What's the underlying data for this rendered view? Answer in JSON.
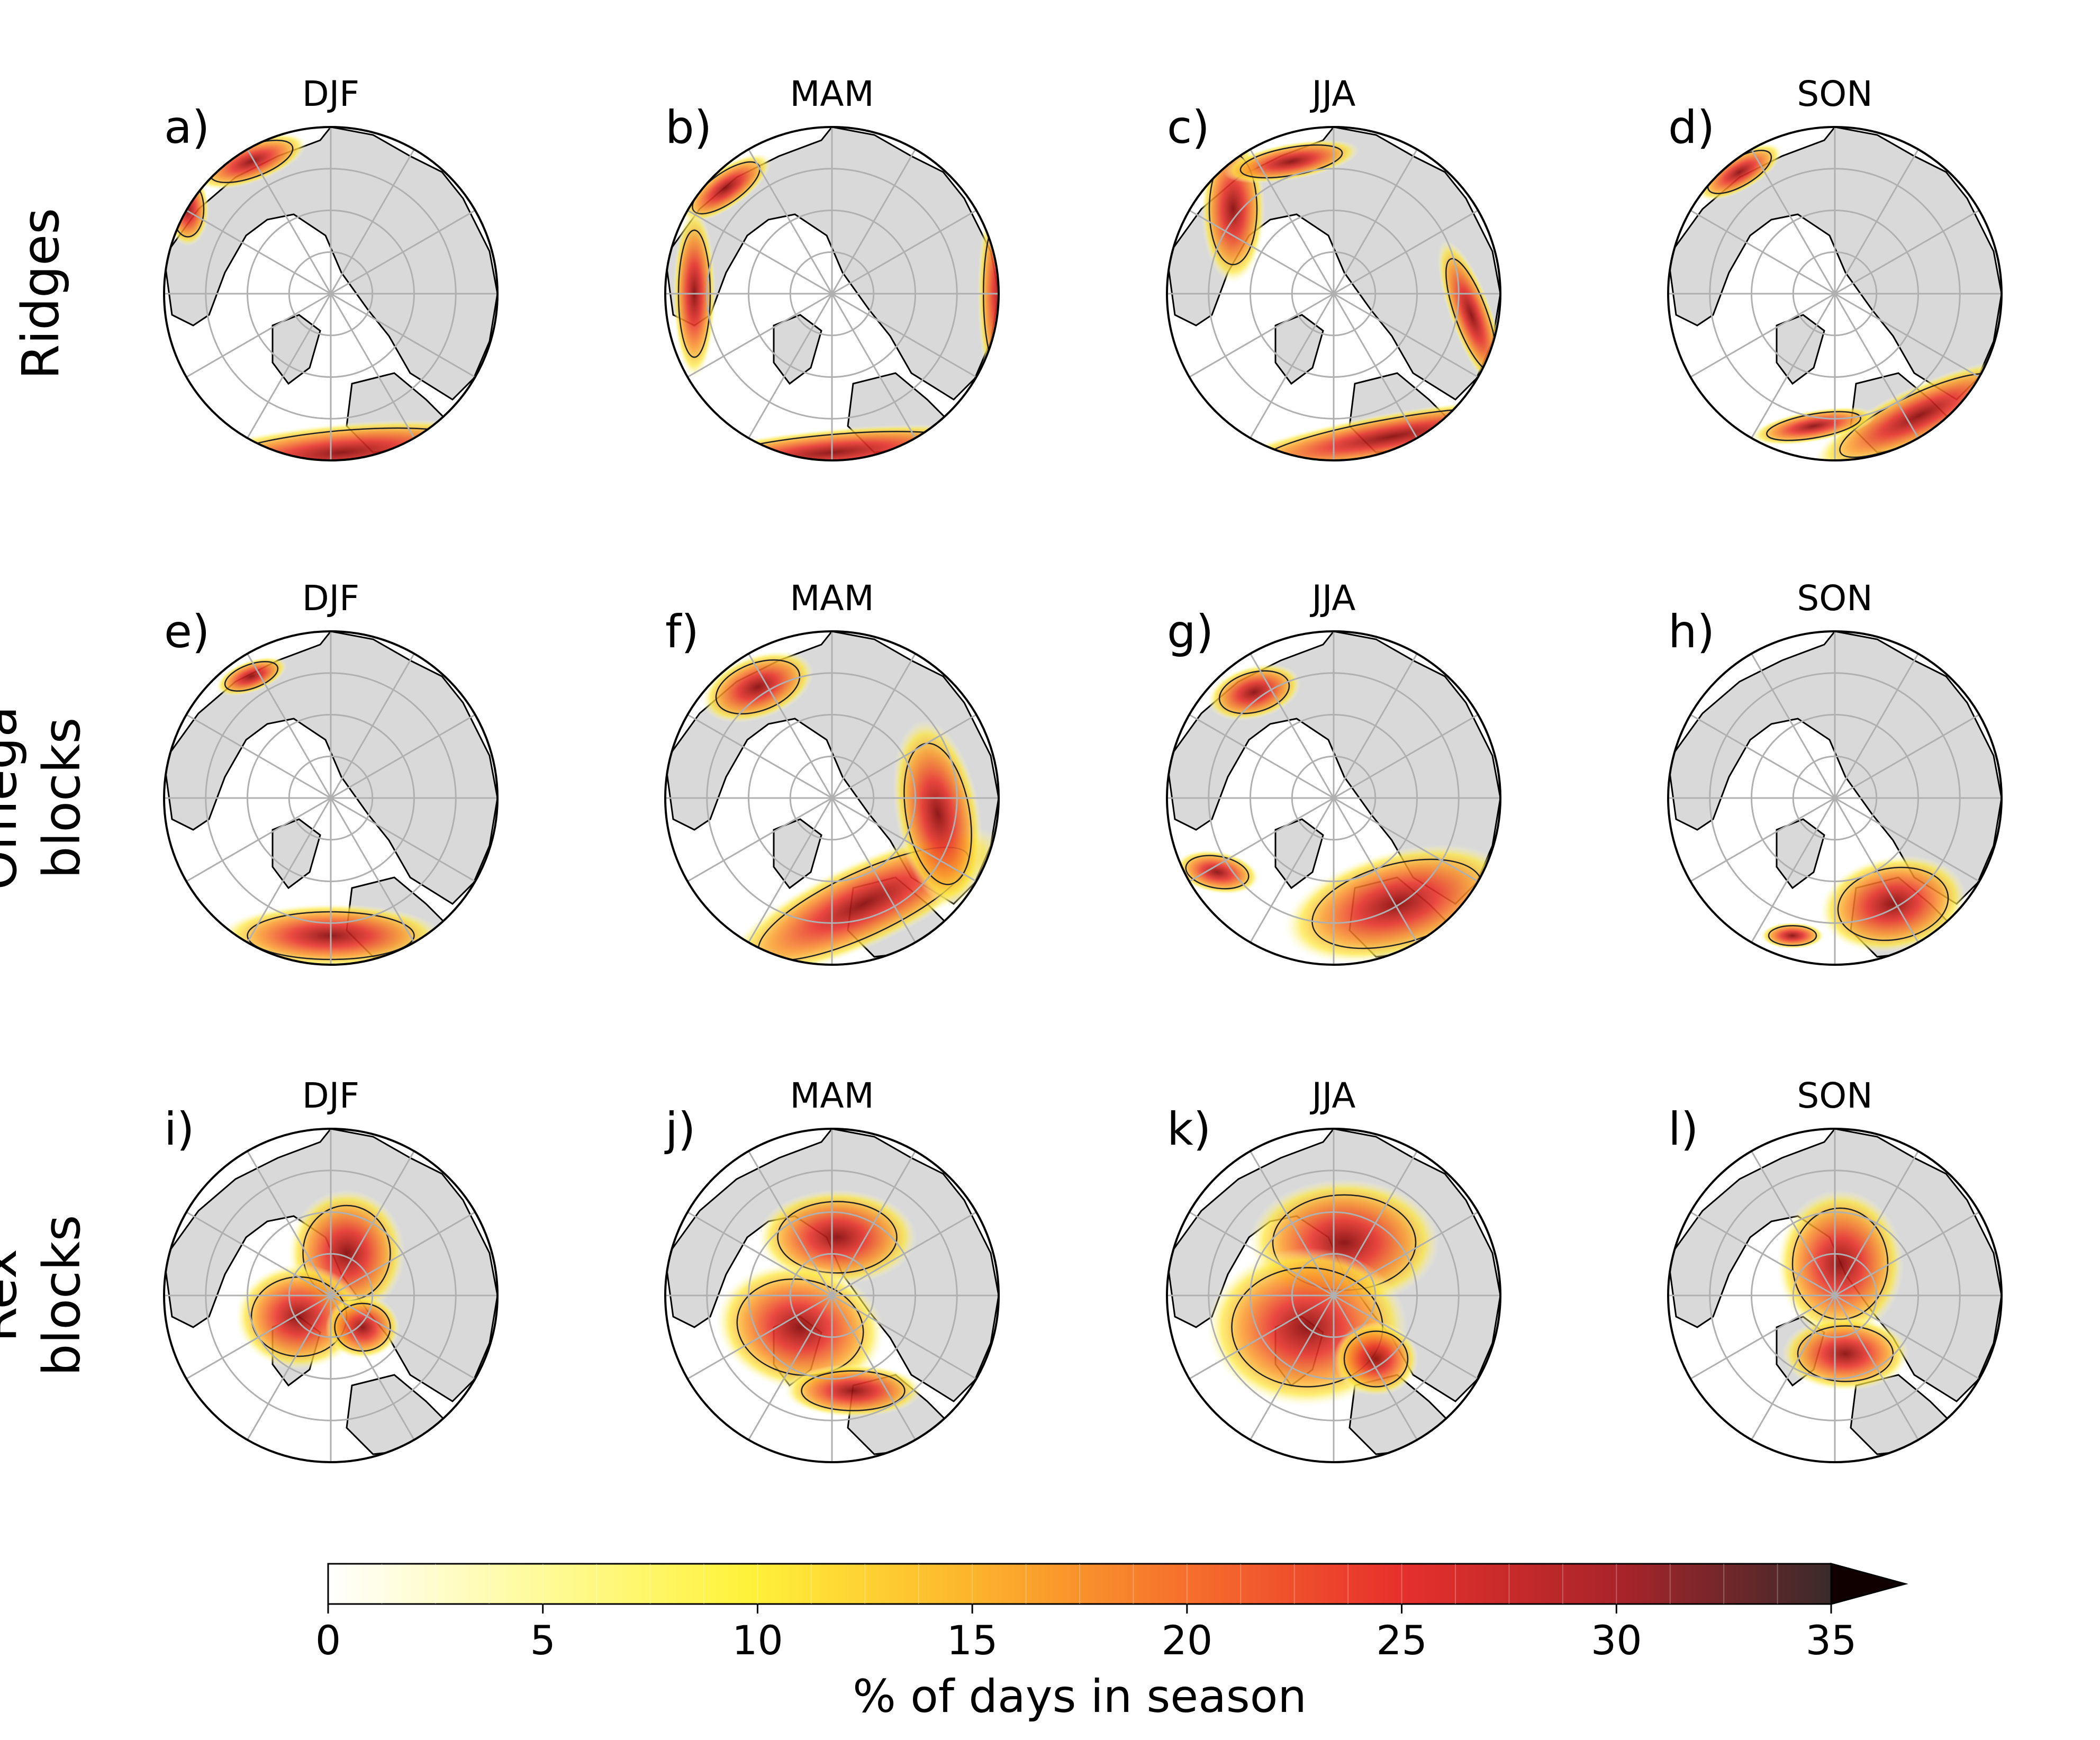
{
  "rows": [
    {
      "label_lines": [
        "Ridges"
      ],
      "panels": [
        {
          "letter": "a)",
          "season": "DJF"
        },
        {
          "letter": "b)",
          "season": "MAM"
        },
        {
          "letter": "c)",
          "season": "JJA"
        },
        {
          "letter": "d)",
          "season": "SON"
        }
      ]
    },
    {
      "label_lines": [
        "Omega",
        "blocks"
      ],
      "panels": [
        {
          "letter": "e)",
          "season": "DJF"
        },
        {
          "letter": "f)",
          "season": "MAM"
        },
        {
          "letter": "g)",
          "season": "JJA"
        },
        {
          "letter": "h)",
          "season": "SON"
        }
      ]
    },
    {
      "label_lines": [
        "Rex",
        "blocks"
      ],
      "panels": [
        {
          "letter": "i)",
          "season": "DJF"
        },
        {
          "letter": "j)",
          "season": "MAM"
        },
        {
          "letter": "k)",
          "season": "JJA"
        },
        {
          "letter": "l)",
          "season": "SON"
        }
      ]
    }
  ],
  "colorbar": {
    "label": "% of days in season",
    "ticks": [
      0,
      5,
      10,
      15,
      20,
      25,
      30,
      35
    ],
    "min": 0,
    "max": 35,
    "extend": "max",
    "colormap": "hot_r"
  },
  "colors": {
    "land": "#d9d9d9",
    "ocean": "#ffffff",
    "gridlines": "#b0b0b0",
    "coastline": "#000000"
  }
}
